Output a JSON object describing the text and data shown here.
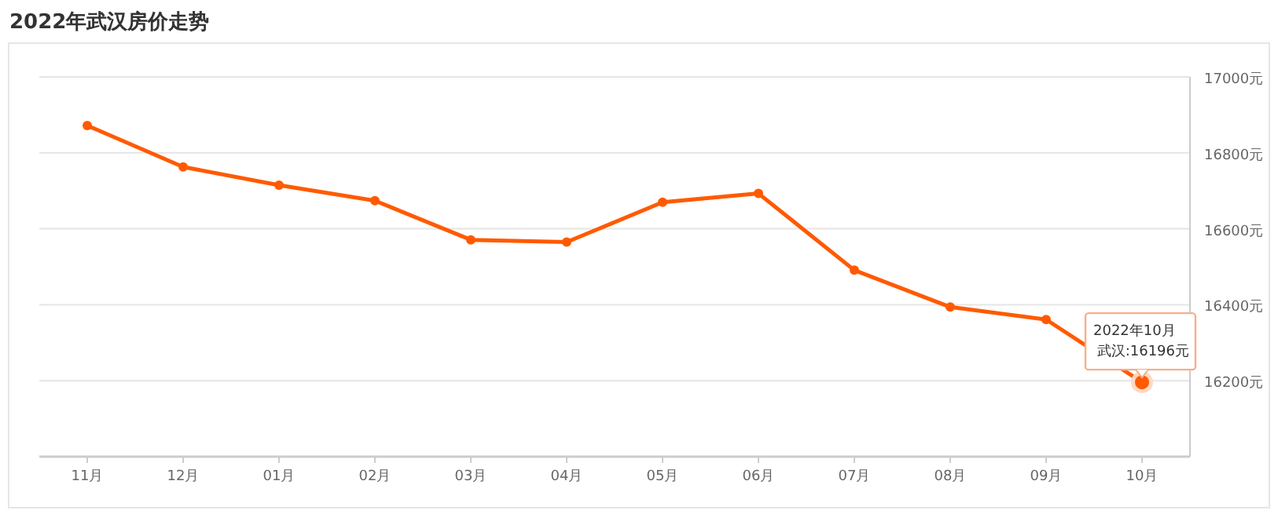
{
  "chart_data": {
    "type": "line",
    "title": "2022年武汉房价走势",
    "categories": [
      "11月",
      "12月",
      "01月",
      "02月",
      "03月",
      "04月",
      "05月",
      "06月",
      "07月",
      "08月",
      "09月",
      "10月"
    ],
    "series": [
      {
        "color": "#ff5a00",
        "values": [
          16872,
          16763,
          16715,
          16674,
          16571,
          16565,
          16670,
          16693,
          16491,
          16394,
          16361,
          16196
        ]
      }
    ],
    "ylim": [
      16000,
      17000
    ],
    "yticks": [
      {
        "value": 16200,
        "label": "16200元"
      },
      {
        "value": 16400,
        "label": "16400元"
      },
      {
        "value": 16600,
        "label": "16600元"
      },
      {
        "value": 16800,
        "label": "16800元"
      },
      {
        "value": 17000,
        "label": "17000元"
      }
    ],
    "grid": "y",
    "marker": "circle",
    "annotations": [
      {
        "text": "2022年10月",
        "x": "10月",
        "y": 16196
      },
      {
        "text": "武汉:16196元",
        "x": "10月",
        "y": 16196
      }
    ]
  }
}
